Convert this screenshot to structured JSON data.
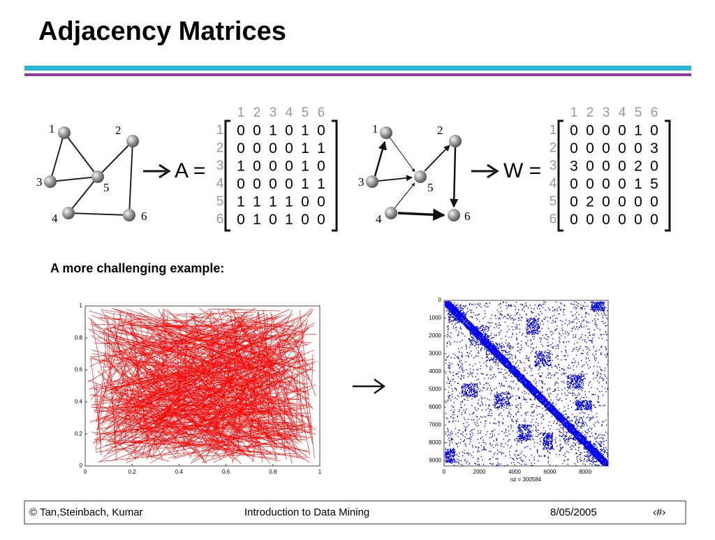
{
  "title": "Adjacency Matrices",
  "graph_a": {
    "node_labels": [
      "1",
      "2",
      "3",
      "4",
      "5",
      "6"
    ]
  },
  "matrix_a": {
    "label": "A =",
    "column_headers": [
      "1",
      "2",
      "3",
      "4",
      "5",
      "6"
    ],
    "row_headers": [
      "1",
      "2",
      "3",
      "4",
      "5",
      "6"
    ],
    "rows": [
      [
        0,
        0,
        1,
        0,
        1,
        0
      ],
      [
        0,
        0,
        0,
        0,
        1,
        1
      ],
      [
        1,
        0,
        0,
        0,
        1,
        0
      ],
      [
        0,
        0,
        0,
        0,
        1,
        1
      ],
      [
        1,
        1,
        1,
        1,
        0,
        0
      ],
      [
        0,
        1,
        0,
        1,
        0,
        0
      ]
    ]
  },
  "graph_w": {
    "node_labels": [
      "1",
      "2",
      "3",
      "4",
      "5",
      "6"
    ]
  },
  "matrix_w": {
    "label": "W =",
    "column_headers": [
      "1",
      "2",
      "3",
      "4",
      "5",
      "6"
    ],
    "row_headers": [
      "1",
      "2",
      "3",
      "4",
      "5",
      "6"
    ],
    "rows": [
      [
        0,
        0,
        0,
        0,
        1,
        0
      ],
      [
        0,
        0,
        0,
        0,
        0,
        3
      ],
      [
        3,
        0,
        0,
        0,
        2,
        0
      ],
      [
        0,
        0,
        0,
        0,
        1,
        5
      ],
      [
        0,
        2,
        0,
        0,
        0,
        0
      ],
      [
        0,
        0,
        0,
        0,
        0,
        0
      ]
    ]
  },
  "subheading": "A more challenging example:",
  "left_plot": {
    "xticks": [
      "0",
      "0.2",
      "0.4",
      "0.6",
      "0.8",
      "1"
    ],
    "yticks": [
      "0",
      "0.2",
      "0.4",
      "0.6",
      "0.8",
      "1"
    ]
  },
  "right_plot": {
    "xticks": [
      "0",
      "2000",
      "4000",
      "6000",
      "8000"
    ],
    "yticks": [
      "0",
      "1000",
      "2000",
      "3000",
      "4000",
      "5000",
      "6000",
      "7000",
      "8000",
      "9000"
    ],
    "xlabel": "nz = 300584"
  },
  "footer": {
    "left": "© Tan,Steinbach, Kumar",
    "center": "Introduction to Data Mining",
    "date": "8/05/2005",
    "page": "‹#›"
  }
}
